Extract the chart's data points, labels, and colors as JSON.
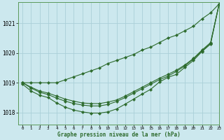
{
  "title": "Graphe pression niveau de la mer (hPa)",
  "background_color": "#cce8ee",
  "grid_color": "#aacfd8",
  "line_color": "#2d6b2d",
  "xlim": [
    -0.5,
    23
  ],
  "ylim": [
    1017.6,
    1021.7
  ],
  "yticks": [
    1018,
    1019,
    1020,
    1021
  ],
  "xticks": [
    0,
    1,
    2,
    3,
    4,
    5,
    6,
    7,
    8,
    9,
    10,
    11,
    12,
    13,
    14,
    15,
    16,
    17,
    18,
    19,
    20,
    21,
    22,
    23
  ],
  "series": [
    {
      "x": [
        0,
        1,
        2,
        3,
        4,
        5,
        6,
        7,
        8,
        9,
        10,
        11,
        12,
        13,
        14,
        15,
        16,
        17,
        18,
        19,
        20,
        21,
        22,
        23
      ],
      "y": [
        1019.0,
        1019.0,
        1019.0,
        1019.0,
        1019.0,
        1019.1,
        1019.2,
        1019.3,
        1019.4,
        1019.5,
        1019.65,
        1019.75,
        1019.85,
        1019.95,
        1020.1,
        1020.2,
        1020.35,
        1020.5,
        1020.6,
        1020.75,
        1020.9,
        1021.15,
        1021.35,
        1021.65
      ]
    },
    {
      "x": [
        0,
        1,
        2,
        3,
        4,
        5,
        6,
        7,
        8,
        9,
        10,
        11,
        12,
        13,
        14,
        15,
        16,
        17,
        18,
        19,
        20,
        21,
        22,
        23
      ],
      "y": [
        1019.0,
        1018.85,
        1018.72,
        1018.65,
        1018.55,
        1018.45,
        1018.38,
        1018.32,
        1018.3,
        1018.3,
        1018.35,
        1018.42,
        1018.55,
        1018.7,
        1018.85,
        1019.0,
        1019.15,
        1019.28,
        1019.42,
        1019.6,
        1019.82,
        1020.1,
        1020.35,
        1021.65
      ]
    },
    {
      "x": [
        0,
        1,
        2,
        3,
        4,
        5,
        6,
        7,
        8,
        9,
        10,
        11,
        12,
        13,
        14,
        15,
        16,
        17,
        18,
        19,
        20,
        21,
        22,
        23
      ],
      "y": [
        1019.0,
        1018.82,
        1018.68,
        1018.6,
        1018.48,
        1018.38,
        1018.3,
        1018.25,
        1018.22,
        1018.22,
        1018.27,
        1018.37,
        1018.5,
        1018.65,
        1018.8,
        1018.95,
        1019.1,
        1019.22,
        1019.38,
        1019.57,
        1019.8,
        1020.07,
        1020.32,
        1021.65
      ]
    },
    {
      "x": [
        0,
        1,
        2,
        3,
        4,
        5,
        6,
        7,
        8,
        9,
        10,
        11,
        12,
        13,
        14,
        15,
        16,
        17,
        18,
        19,
        20,
        21,
        22,
        23
      ],
      "y": [
        1018.95,
        1018.72,
        1018.58,
        1018.5,
        1018.32,
        1018.18,
        1018.08,
        1018.02,
        1017.98,
        1017.98,
        1018.02,
        1018.12,
        1018.28,
        1018.45,
        1018.62,
        1018.78,
        1019.02,
        1019.18,
        1019.28,
        1019.52,
        1019.75,
        1020.05,
        1020.3,
        1021.65
      ]
    }
  ]
}
